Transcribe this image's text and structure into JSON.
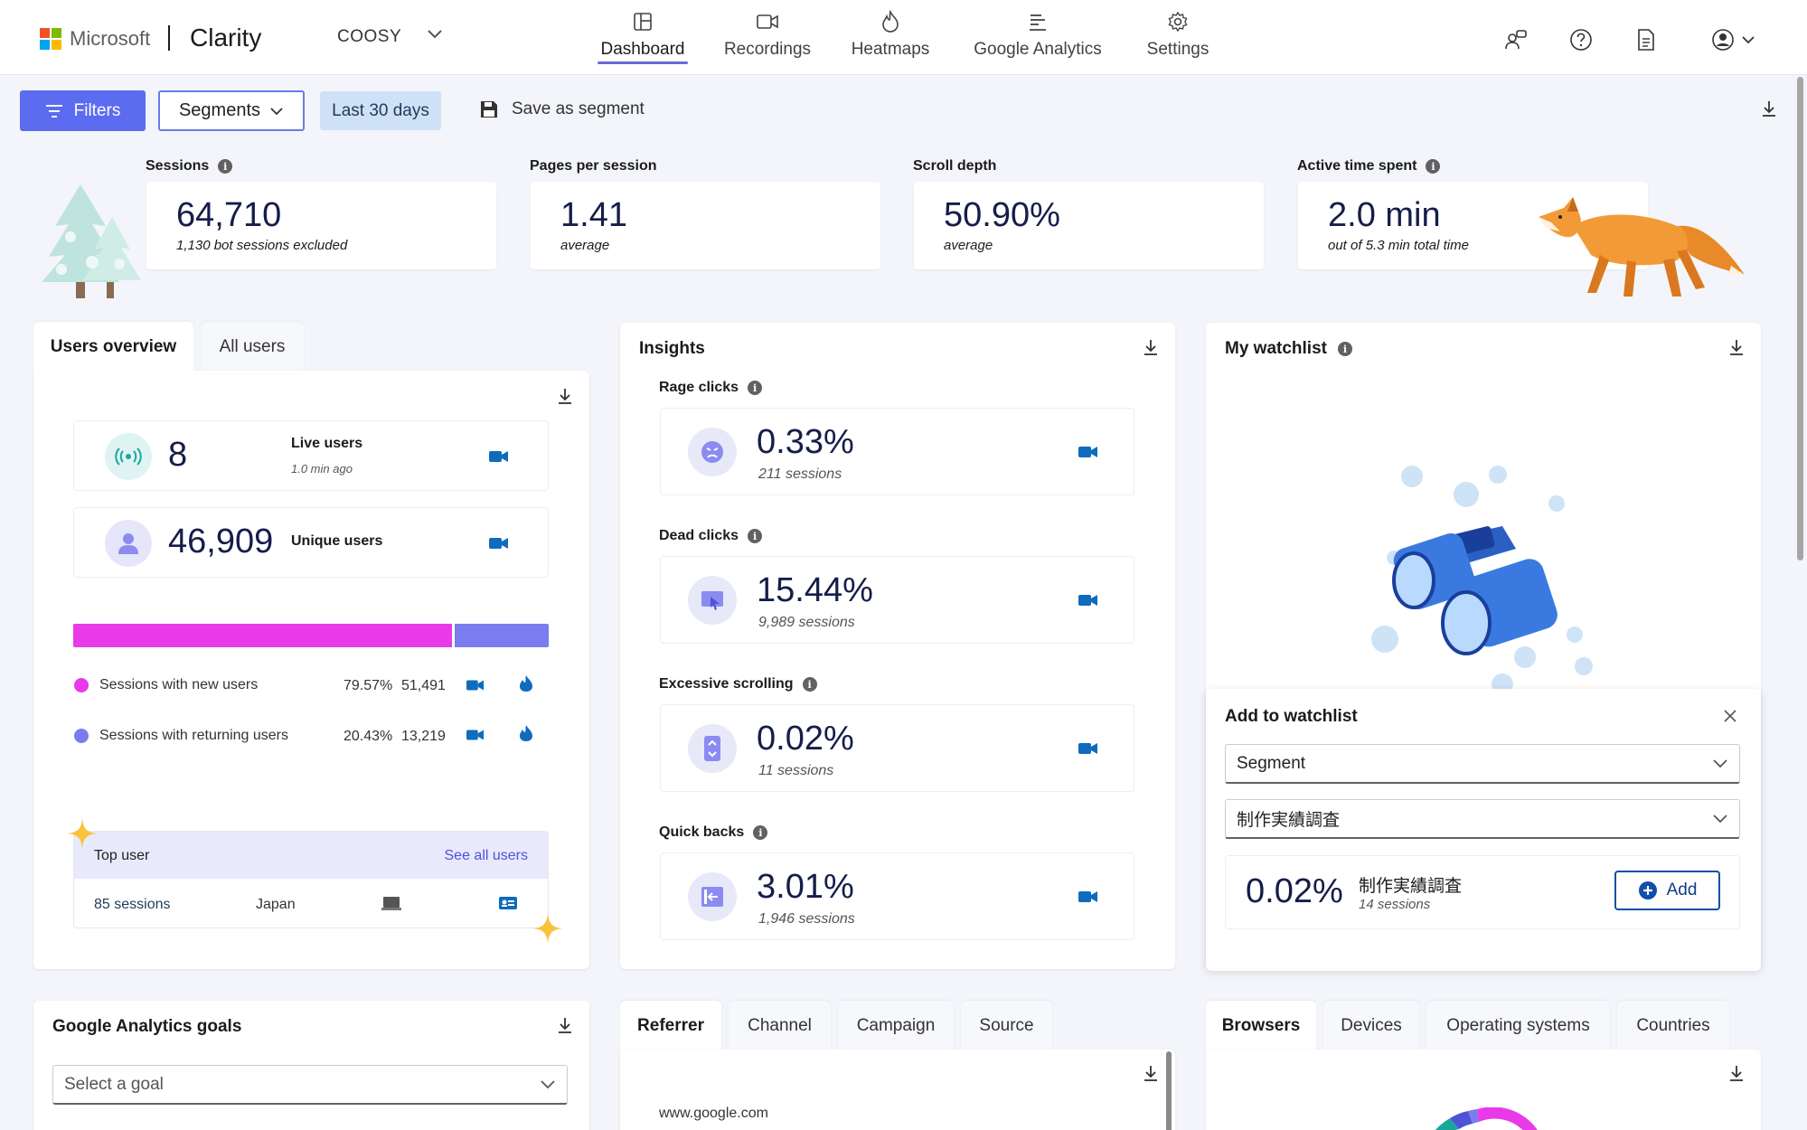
{
  "header": {
    "ms_word": "Microsoft",
    "brand": "Clarity",
    "project": "COOSY",
    "nav": [
      {
        "label": "Dashboard",
        "icon": "dashboard-icon"
      },
      {
        "label": "Recordings",
        "icon": "video-camera-icon"
      },
      {
        "label": "Heatmaps",
        "icon": "flame-icon"
      },
      {
        "label": "Google Analytics",
        "icon": "analytics-icon"
      },
      {
        "label": "Settings",
        "icon": "gear-icon"
      }
    ],
    "active_nav": "Dashboard"
  },
  "toolbar": {
    "filters_label": "Filters",
    "segments_label": "Segments",
    "date_range": "Last 30 days",
    "save_segment_label": "Save as segment"
  },
  "metrics": [
    {
      "label": "Sessions",
      "value": "64,710",
      "sub": "1,130 bot sessions excluded"
    },
    {
      "label": "Pages per session",
      "value": "1.41",
      "sub": "average"
    },
    {
      "label": "Scroll depth",
      "value": "50.90%",
      "sub": "average"
    },
    {
      "label": "Active time spent",
      "value": "2.0 min",
      "sub": "out of 5.3 min total time"
    }
  ],
  "users_panel": {
    "tabs": [
      "Users overview",
      "All users"
    ],
    "live_users": {
      "value": "8",
      "label": "Live users",
      "sub": "1.0 min ago"
    },
    "unique_users": {
      "value": "46,909",
      "label": "Unique users"
    },
    "split_bar": {
      "new_fraction": 0.7957,
      "new_color": "#e83ae8",
      "returning_color": "#7b7cf0"
    },
    "legend": [
      {
        "label": "Sessions with new users",
        "percent": "79.57%",
        "count": "51,491"
      },
      {
        "label": "Sessions with returning users",
        "percent": "20.43%",
        "count": "13,219"
      }
    ],
    "top_user": {
      "title": "Top user",
      "link": "See all users",
      "sessions": "85 sessions",
      "country": "Japan"
    }
  },
  "insights": {
    "title": "Insights",
    "items": [
      {
        "label": "Rage clicks",
        "value": "0.33%",
        "sub": "211 sessions",
        "icon": "angry-face-icon"
      },
      {
        "label": "Dead clicks",
        "value": "15.44%",
        "sub": "9,989 sessions",
        "icon": "dead-click-icon"
      },
      {
        "label": "Excessive scrolling",
        "value": "0.02%",
        "sub": "11 sessions",
        "icon": "scroll-icon"
      },
      {
        "label": "Quick backs",
        "value": "3.01%",
        "sub": "1,946 sessions",
        "icon": "quick-back-icon"
      }
    ]
  },
  "watchlist": {
    "title": "My watchlist",
    "popup": {
      "title": "Add to watchlist",
      "type_select": "Segment",
      "segment_select": "制作実績調査",
      "value": "0.02%",
      "segment_name": "制作実績調査",
      "sessions": "14 sessions",
      "add_label": "Add"
    }
  },
  "ga_goals": {
    "title": "Google Analytics goals",
    "select_placeholder": "Select a goal"
  },
  "traffic": {
    "tabs": [
      "Referrer",
      "Channel",
      "Campaign",
      "Source"
    ],
    "first_row": "www.google.com"
  },
  "tech": {
    "tabs": [
      "Browsers",
      "Devices",
      "Operating systems",
      "Countries"
    ]
  },
  "colors": {
    "accent": "#5b6cf0",
    "camera": "#0f6cbd",
    "new_users": "#e83ae8",
    "returning_users": "#7b7cf0"
  }
}
